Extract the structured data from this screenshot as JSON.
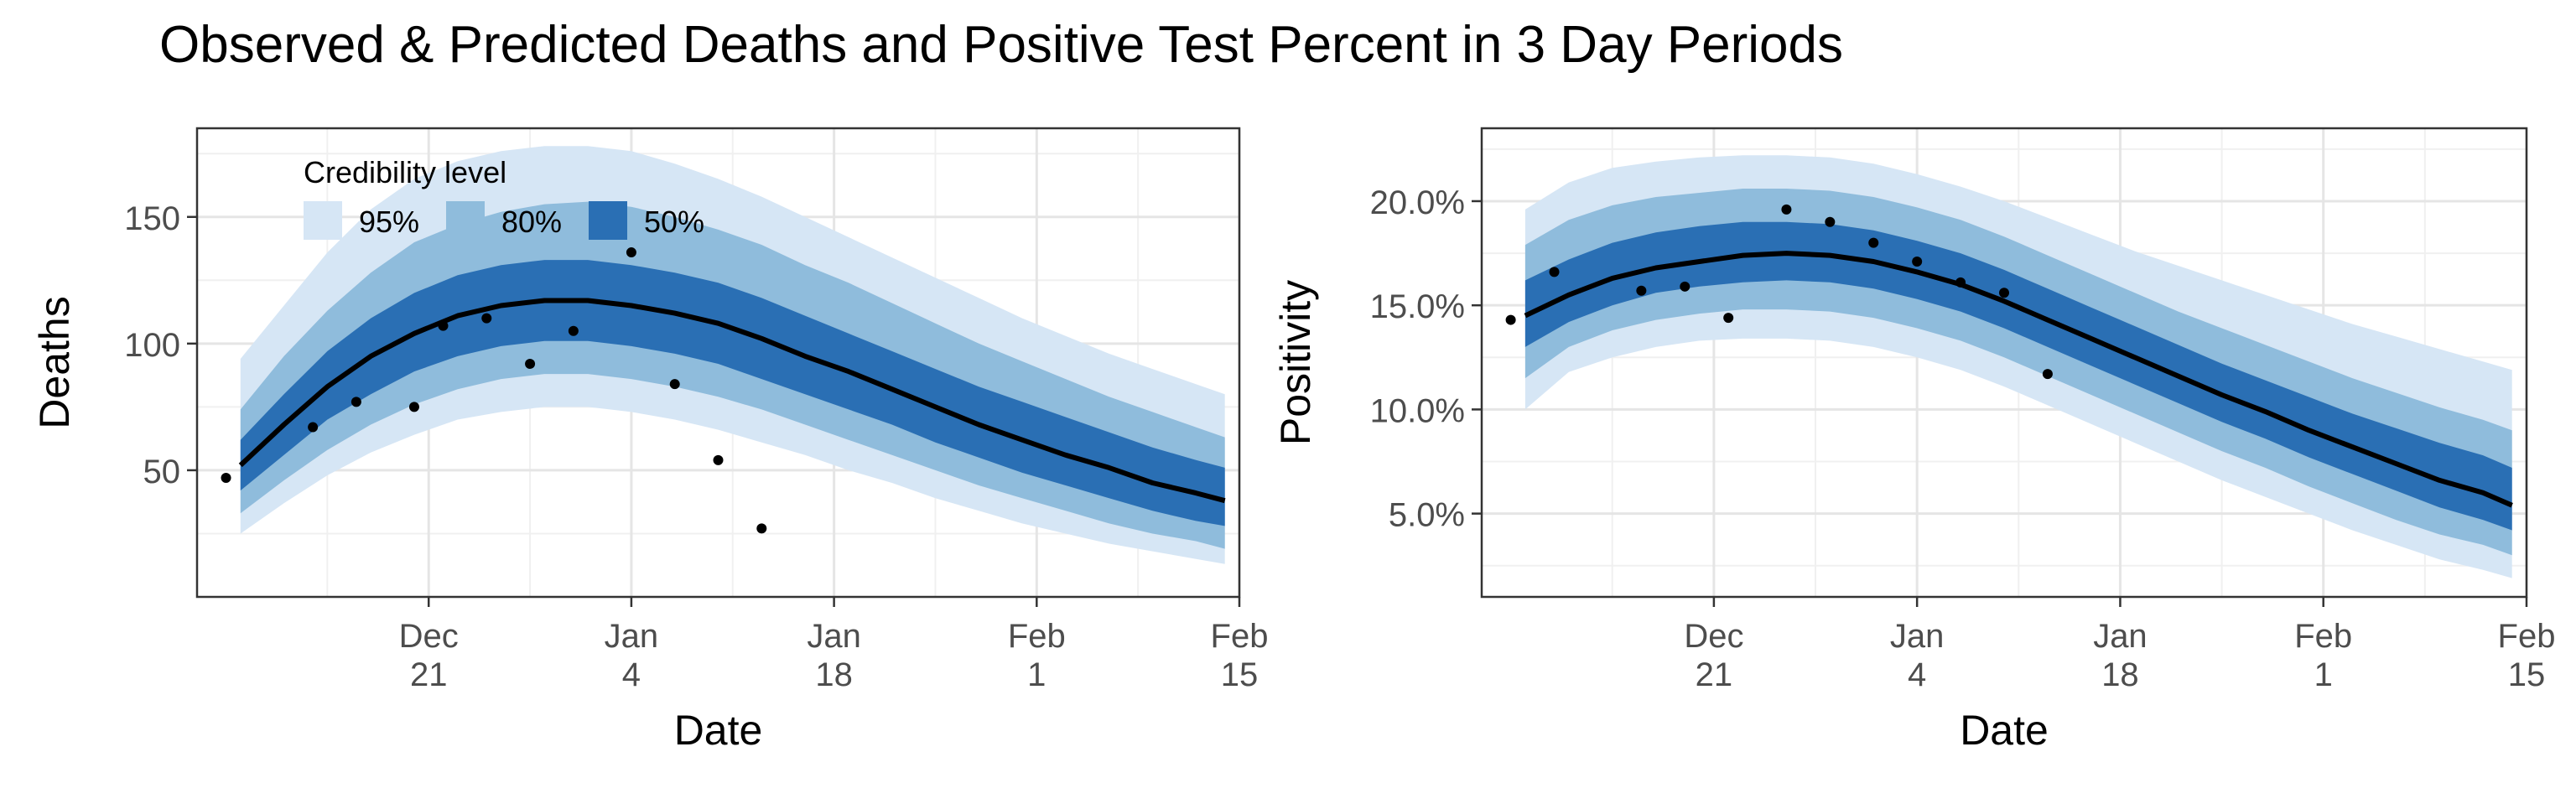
{
  "title": "Observed & Predicted Deaths and Positive Test Percent in 3 Day Periods",
  "colors": {
    "band95": "#d6e6f5",
    "band80": "#8fbcdc",
    "band50": "#2a6fb4",
    "median": "#000000",
    "points": "#000000",
    "grid": "#e5e5e5",
    "axis_text": "#4d4d4d"
  },
  "legend": {
    "title": "Credibility level",
    "items": [
      {
        "label": "95%",
        "color": "#d6e6f5"
      },
      {
        "label": "80%",
        "color": "#8fbcdc"
      },
      {
        "label": "50%",
        "color": "#2a6fb4"
      }
    ],
    "placement": "top-left inside left panel"
  },
  "chart_data": [
    {
      "type": "area",
      "title": "",
      "xlabel": "Date",
      "ylabel": "Deaths",
      "x_ticks": [
        {
          "date": "2020-12-21",
          "label": [
            "Dec",
            "21"
          ]
        },
        {
          "date": "2021-01-04",
          "label": [
            "Jan",
            "4"
          ]
        },
        {
          "date": "2021-01-18",
          "label": [
            "Jan",
            "18"
          ]
        },
        {
          "date": "2021-02-01",
          "label": [
            "Feb",
            "1"
          ]
        },
        {
          "date": "2021-02-15",
          "label": [
            "Feb",
            "15"
          ]
        }
      ],
      "y_ticks": [
        50,
        100,
        150
      ],
      "y_tick_labels": [
        "50",
        "100",
        "150"
      ],
      "xlim": [
        "2020-12-05",
        "2021-02-15"
      ],
      "ylim": [
        0,
        185
      ],
      "grid": true,
      "x": [
        "2020-12-08",
        "2020-12-11",
        "2020-12-14",
        "2020-12-17",
        "2020-12-20",
        "2020-12-23",
        "2020-12-26",
        "2020-12-29",
        "2021-01-01",
        "2021-01-04",
        "2021-01-07",
        "2021-01-10",
        "2021-01-13",
        "2021-01-16",
        "2021-01-19",
        "2021-01-22",
        "2021-01-25",
        "2021-01-28",
        "2021-01-31",
        "2021-02-03",
        "2021-02-06",
        "2021-02-09",
        "2021-02-12",
        "2021-02-14"
      ],
      "median": [
        52,
        68,
        83,
        95,
        104,
        111,
        115,
        117,
        117,
        115,
        112,
        108,
        102,
        95,
        89,
        82,
        75,
        68,
        62,
        56,
        51,
        45,
        41,
        38
      ],
      "band50": {
        "lower": [
          42,
          56,
          70,
          80,
          89,
          95,
          99,
          101,
          101,
          99,
          96,
          92,
          86,
          80,
          74,
          68,
          61,
          55,
          49,
          44,
          39,
          34,
          30,
          28
        ],
        "upper": [
          62,
          80,
          97,
          110,
          120,
          127,
          131,
          133,
          133,
          131,
          128,
          124,
          118,
          111,
          104,
          97,
          90,
          83,
          77,
          71,
          65,
          59,
          54,
          51
        ]
      },
      "band80": {
        "lower": [
          33,
          46,
          58,
          68,
          76,
          82,
          86,
          88,
          88,
          86,
          83,
          79,
          74,
          68,
          62,
          56,
          50,
          44,
          39,
          34,
          29,
          25,
          22,
          19
        ]
      },
      "band80_upper": [
        74,
        95,
        113,
        128,
        140,
        147,
        152,
        155,
        156,
        154,
        150,
        145,
        139,
        131,
        124,
        116,
        108,
        100,
        93,
        86,
        79,
        73,
        67,
        63
      ],
      "band95": {
        "lower": [
          25,
          37,
          48,
          57,
          64,
          70,
          73,
          75,
          75,
          73,
          70,
          66,
          61,
          56,
          50,
          45,
          39,
          34,
          29,
          25,
          21,
          18,
          15,
          13
        ],
        "upper": [
          94,
          115,
          136,
          153,
          165,
          172,
          176,
          178,
          178,
          176,
          171,
          165,
          158,
          150,
          142,
          134,
          126,
          118,
          110,
          103,
          96,
          90,
          84,
          80
        ]
      },
      "observed": [
        {
          "x": "2020-12-07",
          "y": 47
        },
        {
          "x": "2020-12-13",
          "y": 67
        },
        {
          "x": "2020-12-16",
          "y": 77
        },
        {
          "x": "2020-12-20",
          "y": 75
        },
        {
          "x": "2020-12-22",
          "y": 107
        },
        {
          "x": "2020-12-25",
          "y": 110
        },
        {
          "x": "2020-12-28",
          "y": 92
        },
        {
          "x": "2020-12-31",
          "y": 105
        },
        {
          "x": "2021-01-04",
          "y": 136
        },
        {
          "x": "2021-01-07",
          "y": 84
        },
        {
          "x": "2021-01-10",
          "y": 54
        },
        {
          "x": "2021-01-13",
          "y": 27
        }
      ]
    },
    {
      "type": "area",
      "title": "",
      "xlabel": "Date",
      "ylabel": "Positivity",
      "x_ticks": [
        {
          "date": "2020-12-21",
          "label": [
            "Dec",
            "21"
          ]
        },
        {
          "date": "2021-01-04",
          "label": [
            "Jan",
            "4"
          ]
        },
        {
          "date": "2021-01-18",
          "label": [
            "Jan",
            "18"
          ]
        },
        {
          "date": "2021-02-01",
          "label": [
            "Feb",
            "1"
          ]
        },
        {
          "date": "2021-02-15",
          "label": [
            "Feb",
            "15"
          ]
        }
      ],
      "y_ticks": [
        5,
        10,
        15,
        20
      ],
      "y_tick_labels": [
        "5.0%",
        "10.0%",
        "15.0%",
        "20.0%"
      ],
      "xlim": [
        "2020-12-05",
        "2021-02-15"
      ],
      "ylim": [
        1,
        23.5
      ],
      "grid": true,
      "x": [
        "2020-12-08",
        "2020-12-11",
        "2020-12-14",
        "2020-12-17",
        "2020-12-20",
        "2020-12-23",
        "2020-12-26",
        "2020-12-29",
        "2021-01-01",
        "2021-01-04",
        "2021-01-07",
        "2021-01-10",
        "2021-01-13",
        "2021-01-16",
        "2021-01-19",
        "2021-01-22",
        "2021-01-25",
        "2021-01-28",
        "2021-01-31",
        "2021-02-03",
        "2021-02-06",
        "2021-02-09",
        "2021-02-12",
        "2021-02-14"
      ],
      "median": [
        14.5,
        15.5,
        16.3,
        16.8,
        17.1,
        17.4,
        17.5,
        17.4,
        17.1,
        16.6,
        16.0,
        15.2,
        14.3,
        13.4,
        12.5,
        11.6,
        10.7,
        9.9,
        9.0,
        8.2,
        7.4,
        6.6,
        6.0,
        5.4
      ],
      "band50": {
        "lower": [
          13.0,
          14.2,
          15.0,
          15.6,
          15.9,
          16.1,
          16.2,
          16.1,
          15.8,
          15.3,
          14.7,
          13.9,
          13.0,
          12.1,
          11.2,
          10.3,
          9.4,
          8.6,
          7.7,
          6.9,
          6.1,
          5.3,
          4.7,
          4.2
        ],
        "upper": [
          16.2,
          17.2,
          18.0,
          18.5,
          18.8,
          19.0,
          19.0,
          18.9,
          18.6,
          18.1,
          17.5,
          16.7,
          15.8,
          14.9,
          14.0,
          13.1,
          12.2,
          11.4,
          10.6,
          9.8,
          9.1,
          8.4,
          7.8,
          7.2
        ]
      },
      "band80": {
        "lower": [
          11.5,
          13.0,
          13.8,
          14.3,
          14.6,
          14.8,
          14.8,
          14.7,
          14.4,
          13.9,
          13.3,
          12.5,
          11.6,
          10.7,
          9.8,
          8.9,
          8.0,
          7.2,
          6.3,
          5.5,
          4.7,
          4.0,
          3.5,
          3.0
        ]
      },
      "band80_upper": [
        17.9,
        19.1,
        19.8,
        20.2,
        20.4,
        20.6,
        20.6,
        20.5,
        20.2,
        19.7,
        19.1,
        18.3,
        17.4,
        16.5,
        15.6,
        14.7,
        13.9,
        13.1,
        12.3,
        11.5,
        10.8,
        10.1,
        9.5,
        9.0
      ],
      "band95": {
        "lower": [
          10.0,
          11.8,
          12.5,
          13.0,
          13.3,
          13.4,
          13.4,
          13.3,
          13.0,
          12.5,
          11.9,
          11.1,
          10.2,
          9.3,
          8.4,
          7.5,
          6.6,
          5.8,
          5.0,
          4.2,
          3.5,
          2.8,
          2.3,
          1.9
        ],
        "upper": [
          19.6,
          20.9,
          21.6,
          21.9,
          22.1,
          22.2,
          22.2,
          22.1,
          21.8,
          21.3,
          20.7,
          20.0,
          19.2,
          18.4,
          17.6,
          16.9,
          16.2,
          15.5,
          14.8,
          14.1,
          13.5,
          12.9,
          12.3,
          11.9
        ]
      },
      "observed": [
        {
          "x": "2020-12-07",
          "y": 14.3
        },
        {
          "x": "2020-12-10",
          "y": 16.6
        },
        {
          "x": "2020-12-16",
          "y": 15.7
        },
        {
          "x": "2020-12-19",
          "y": 15.9
        },
        {
          "x": "2020-12-22",
          "y": 14.4
        },
        {
          "x": "2020-12-26",
          "y": 19.6
        },
        {
          "x": "2020-12-29",
          "y": 19.0
        },
        {
          "x": "2021-01-01",
          "y": 18.0
        },
        {
          "x": "2021-01-04",
          "y": 17.1
        },
        {
          "x": "2021-01-07",
          "y": 16.1
        },
        {
          "x": "2021-01-10",
          "y": 15.6
        },
        {
          "x": "2021-01-13",
          "y": 11.7
        }
      ]
    }
  ]
}
